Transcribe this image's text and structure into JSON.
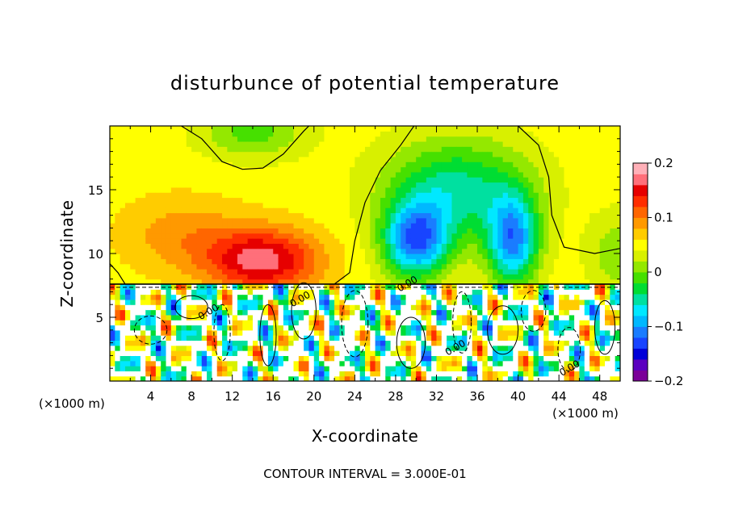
{
  "chart_data": {
    "type": "heatmap",
    "title": "disturbunce of potential temperature",
    "xlabel": "X-coordinate",
    "ylabel": "Z-coordinate",
    "x_unit": "(×1000 m)",
    "x_unit_right": "(×1000 m)",
    "xlim": [
      0,
      50
    ],
    "ylim": [
      0,
      20
    ],
    "x_ticks": [
      4,
      8,
      12,
      16,
      20,
      24,
      28,
      32,
      36,
      40,
      44,
      48
    ],
    "y_ticks": [
      5,
      10,
      15
    ],
    "colorbar": {
      "range": [
        -0.2,
        0.2
      ],
      "tick_values": [
        0.2,
        0.1,
        0,
        -0.1,
        -0.2
      ],
      "tick_labels": [
        "0.2",
        "0.1",
        "0",
        "−0.1",
        "−0.2"
      ],
      "colors": [
        "#7b0099",
        "#5b00c0",
        "#0000d8",
        "#1844ff",
        "#1a7cff",
        "#00b8ff",
        "#00e8ff",
        "#00e0a0",
        "#00dd33",
        "#46e000",
        "#94e800",
        "#d8f000",
        "#ffff00",
        "#ffcc00",
        "#ff9900",
        "#ff6600",
        "#ff2e00",
        "#e60000",
        "#ff6f7a",
        "#ffb0b8"
      ]
    },
    "contour_interval": "CONTOUR INTERVAL = 3.000E-01",
    "contour_labels": [
      "0.00",
      "0.00",
      "0.00",
      "0.00",
      "0.00"
    ]
  }
}
